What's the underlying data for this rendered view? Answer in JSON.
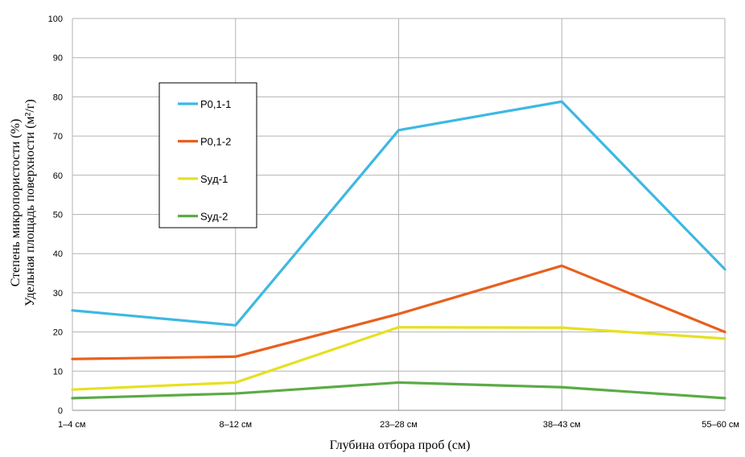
{
  "chart_data": {
    "type": "line",
    "title": "",
    "xlabel": "Глубина отбора проб (см)",
    "ylabel_line1": "Степень микропористости (%)",
    "ylabel_line2": "Удельная площадь поверхности (м²/г)",
    "categories": [
      "1–4 см",
      "8–12 см",
      "23–28 см",
      "38–43 см",
      "55–60 см"
    ],
    "ylim": [
      0,
      100
    ],
    "yticks": [
      0,
      10,
      20,
      30,
      40,
      50,
      60,
      70,
      80,
      90,
      100
    ],
    "grid": true,
    "legend_position": "upper-left inside",
    "series": [
      {
        "name": "P0,1-1",
        "color": "#3db8e3",
        "values": [
          25.5,
          21.7,
          71.5,
          78.8,
          36.0
        ]
      },
      {
        "name": "P0,1-2",
        "color": "#e8601d",
        "values": [
          13.1,
          13.7,
          24.6,
          36.9,
          20.0
        ]
      },
      {
        "name": "Syд-1",
        "color": "#e6e021",
        "values": [
          5.3,
          7.1,
          21.2,
          21.1,
          18.3
        ]
      },
      {
        "name": "Syд-2",
        "color": "#5bab45",
        "values": [
          3.1,
          4.3,
          7.1,
          5.9,
          3.1
        ]
      }
    ]
  }
}
